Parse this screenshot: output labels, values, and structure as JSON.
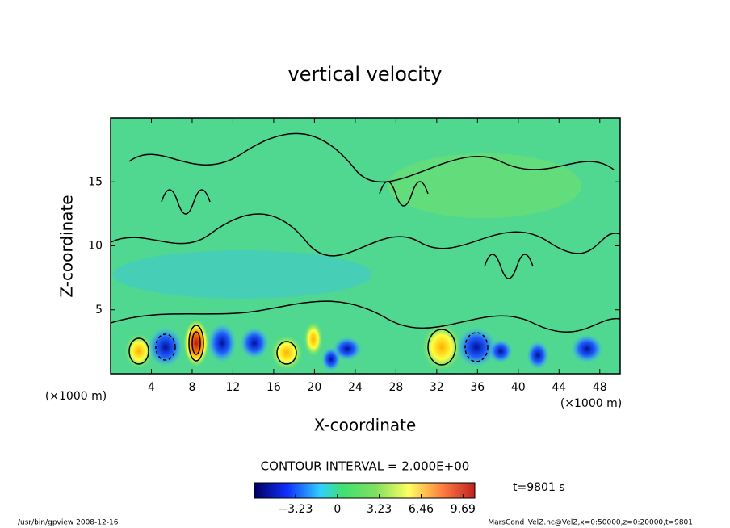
{
  "chart_data": {
    "type": "contour",
    "title": "vertical velocity",
    "x_label": "X-coordinate",
    "y_label": "Z-coordinate",
    "x_unit_label": "(×1000 m)",
    "x_unit_label_right": "(×1000 m)",
    "xlim": [
      0,
      50
    ],
    "xticks": [
      4,
      8,
      12,
      16,
      20,
      24,
      28,
      32,
      36,
      40,
      44,
      48
    ],
    "ylim": [
      0,
      20
    ],
    "yticks": [
      5,
      10,
      15
    ],
    "contour_interval": "CONTOUR INTERVAL = 2.000E+00",
    "colorbar_lim": [
      -6.4,
      10.6
    ],
    "colorbar_ticks": [
      {
        "value": -3.23,
        "label": "−3.23"
      },
      0,
      3.23,
      6.46,
      9.69
    ],
    "time_label": "t=9801 s",
    "footer_left": "/usr/bin/gpview   2008-12-16",
    "footer_right": "MarsCond_VelZ.nc@VelZ,x=0:50000,z=0:20000,t=9801"
  }
}
